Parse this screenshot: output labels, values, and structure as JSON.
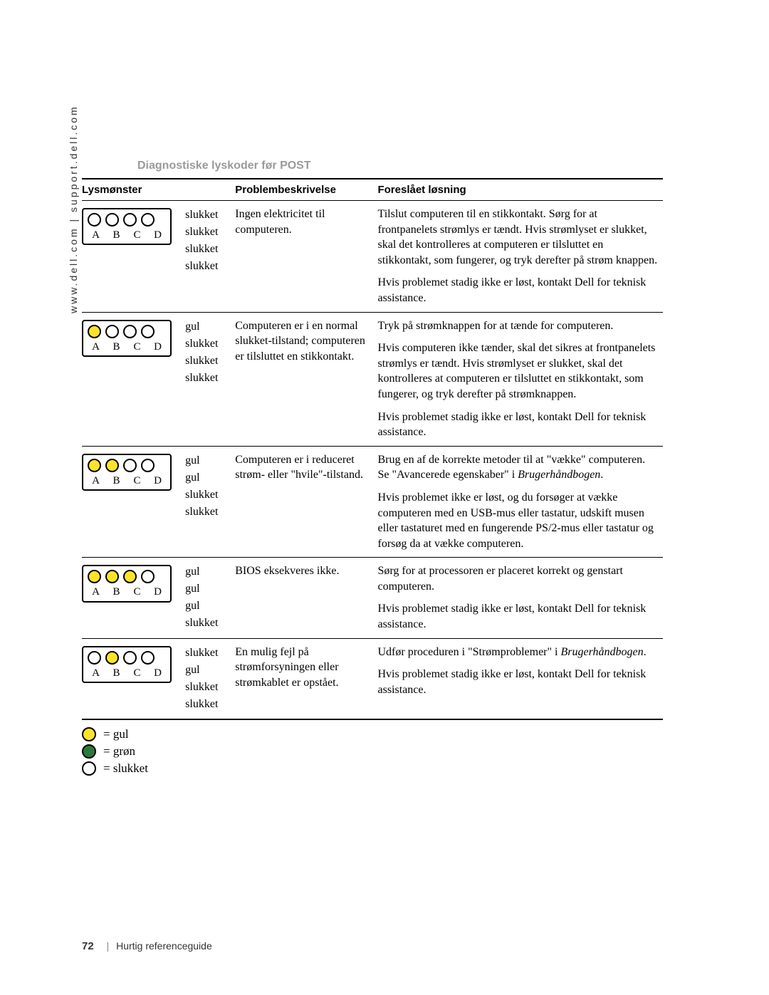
{
  "sidebar": "www.dell.com | support.dell.com",
  "section_title": "Diagnostiske lyskoder før POST",
  "headers": {
    "pattern": "Lysmønster",
    "problem": "Problembeskrivelse",
    "solution": "Foreslået løsning"
  },
  "light_labels": [
    "A",
    "B",
    "C",
    "D"
  ],
  "state_names": {
    "off": "slukket",
    "yellow": "gul",
    "green": "grøn"
  },
  "rows": [
    {
      "lights": [
        "off",
        "off",
        "off",
        "off"
      ],
      "problem": "Ingen elektricitet til computeren.",
      "solutions": [
        "Tilslut computeren til en stikkontakt. Sørg for at frontpanelets strømlys er tændt. Hvis strømlyset er slukket, skal det kontrolleres at computeren er tilsluttet en stikkontakt, som fungerer, og tryk derefter på strøm knappen.",
        "Hvis problemet stadig ikke er løst, kontakt Dell for teknisk assistance."
      ]
    },
    {
      "lights": [
        "yellow",
        "off",
        "off",
        "off"
      ],
      "problem": "Computeren er i en normal slukket-tilstand; computeren er tilsluttet en stikkontakt.",
      "solutions": [
        "Tryk på strømknappen for at tænde for computeren.",
        "Hvis computeren ikke tænder, skal det sikres at frontpanelets strømlys er tændt. Hvis strømlyset er slukket, skal det kontrolleres at computeren er tilsluttet en stikkontakt, som fungerer, og tryk derefter på strømknappen.",
        "Hvis problemet stadig ikke er løst, kontakt Dell for teknisk assistance."
      ]
    },
    {
      "lights": [
        "yellow",
        "yellow",
        "off",
        "off"
      ],
      "problem": "Computeren er i reduceret strøm- eller \"hvile\"-tilstand.",
      "solutions": [
        "Brug en af de korrekte metoder til at \"vække\" computeren. Se \"Avancerede egenskaber\" i <em>Brugerhåndbogen</em>.",
        "Hvis problemet ikke er løst, og du forsøger at vække computeren med en USB-mus eller tastatur, udskift musen eller tastaturet med en fungerende PS/2-mus eller tastatur og forsøg da at vække computeren."
      ]
    },
    {
      "lights": [
        "yellow",
        "yellow",
        "yellow",
        "off"
      ],
      "problem": "BIOS eksekveres ikke.",
      "solutions": [
        "Sørg for at processoren er placeret korrekt og genstart computeren.",
        "Hvis problemet stadig ikke er løst, kontakt Dell for teknisk assistance."
      ]
    },
    {
      "lights": [
        "off",
        "yellow",
        "off",
        "off"
      ],
      "problem": "En mulig fejl på strømforsyningen eller strømkablet er opstået.",
      "solutions": [
        "Udfør proceduren i \"Strømproblemer\" i <em>Brugerhåndbogen</em>.",
        "Hvis problemet stadig ikke er løst, kontakt Dell for teknisk assistance."
      ]
    }
  ],
  "legend": [
    {
      "color": "yellow",
      "label": "= gul"
    },
    {
      "color": "green",
      "label": "= grøn"
    },
    {
      "color": "off",
      "label": "= slukket"
    }
  ],
  "footer": {
    "page": "72",
    "title": "Hurtig referenceguide"
  },
  "colors": {
    "yellow": "#fee428",
    "green": "#2a7a3a",
    "off": "#ffffff",
    "heading_gray": "#9a9a9a"
  }
}
